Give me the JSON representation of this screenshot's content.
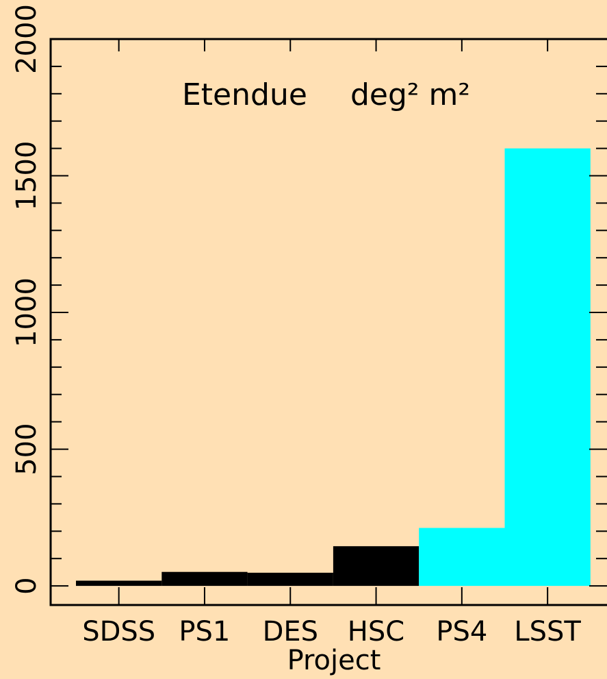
{
  "chart_data": {
    "type": "bar",
    "title": "Etendue",
    "unit_label": "deg² m²",
    "xlabel": "Project",
    "ylabel": "",
    "categories": [
      "SDSS",
      "PS1",
      "DES",
      "HSC",
      "PS4",
      "LSST"
    ],
    "values": [
      19,
      51,
      48,
      145,
      212,
      1600
    ],
    "bar_colors": [
      "#000000",
      "#000000",
      "#000000",
      "#000000",
      "#00ffff",
      "#00ffff"
    ],
    "ylim": [
      -70,
      2000
    ],
    "y_ticks": [
      0,
      500,
      1000,
      1500,
      2000
    ],
    "y_minor_step": 100,
    "grid": false
  },
  "colors": {
    "background": "#ffe0b4",
    "axis": "#000000",
    "highlight": "#00ffff"
  }
}
